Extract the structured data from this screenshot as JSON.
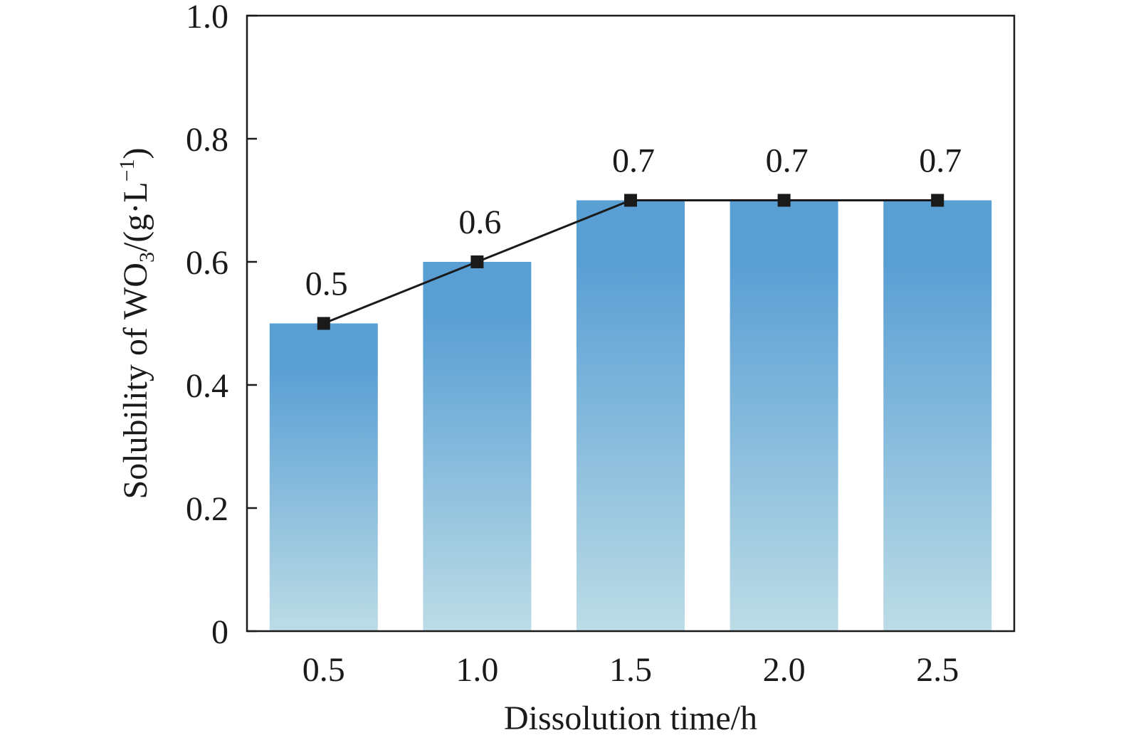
{
  "chart_data": {
    "type": "bar",
    "categories": [
      "0.5",
      "1.0",
      "1.5",
      "2.0",
      "2.5"
    ],
    "values": [
      0.5,
      0.6,
      0.7,
      0.7,
      0.7
    ],
    "data_labels": [
      "0.5",
      "0.6",
      "0.7",
      "0.7",
      "0.7"
    ],
    "overlay_line": {
      "type": "line",
      "marker": "square",
      "values": [
        0.5,
        0.6,
        0.7,
        0.7,
        0.7
      ]
    },
    "xlabel": "Dissolution time/h",
    "ylabel": {
      "prefix": "Solubility of WO",
      "subscript": "3",
      "middle": "/(g·L",
      "superscript": "−1",
      "suffix": ")"
    },
    "ylim": [
      0,
      1.0
    ],
    "yticks": [
      "0",
      "0.2",
      "0.4",
      "0.6",
      "0.8",
      "1.0"
    ],
    "ytick_values": [
      0,
      0.2,
      0.4,
      0.6,
      0.8,
      1.0
    ],
    "grid": false,
    "legend": "none",
    "colors": {
      "bar_top": "#5a9fd4",
      "bar_bottom": "#bcdce6",
      "line": "#1a1a1a",
      "marker": "#1a1a1a",
      "axis": "#1a1a1a"
    }
  }
}
